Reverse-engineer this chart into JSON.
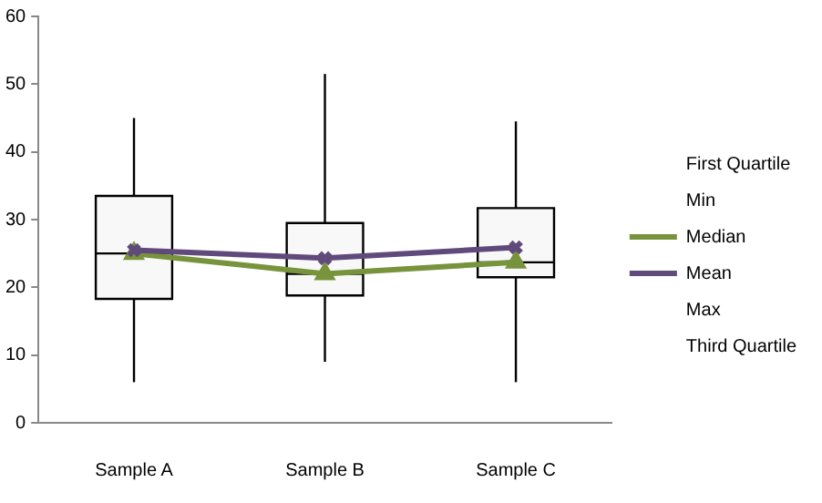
{
  "chart_data": {
    "type": "box",
    "categories": [
      "Sample A",
      "Sample B",
      "Sample C"
    ],
    "boxes": [
      {
        "low": 6,
        "q1": 18.3,
        "median": 25,
        "q3": 33.5,
        "high": 45
      },
      {
        "low": 9,
        "q1": 18.8,
        "median": 22,
        "q3": 29.5,
        "high": 51.5
      },
      {
        "low": 6,
        "q1": 21.5,
        "median": 23.7,
        "q3": 31.7,
        "high": 44.5
      }
    ],
    "series": [
      {
        "name": "First Quartile",
        "type": "line",
        "values": [
          null,
          null,
          null
        ]
      },
      {
        "name": "Min",
        "type": "line",
        "values": [
          null,
          null,
          null
        ]
      },
      {
        "name": "Median",
        "type": "line",
        "color": "#77933c",
        "marker": "triangle",
        "values": [
          25,
          22,
          23.7
        ]
      },
      {
        "name": "Mean",
        "type": "line",
        "color": "#604a7b",
        "marker": "cross",
        "values": [
          25.5,
          24.3,
          25.9
        ]
      },
      {
        "name": "Max",
        "type": "line",
        "values": [
          null,
          null,
          null
        ]
      },
      {
        "name": "Third Quartile",
        "type": "line",
        "values": [
          null,
          null,
          null
        ]
      }
    ],
    "ylim": [
      0,
      60
    ],
    "yticks": [
      0,
      10,
      20,
      30,
      40,
      50,
      60
    ],
    "grid": false,
    "legend": "right"
  }
}
